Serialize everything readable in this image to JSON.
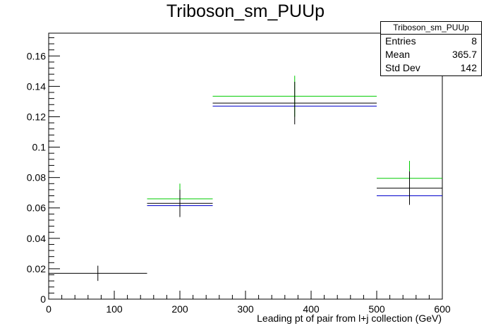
{
  "chart_data": {
    "type": "histogram",
    "title": "Triboson_sm_PUUp",
    "xlabel": "Leading pt of pair from l+j collection (GeV)",
    "ylabel": "",
    "xlim": [
      0,
      600
    ],
    "ylim": [
      0,
      0.175
    ],
    "x_ticks": [
      "0",
      "100",
      "200",
      "300",
      "400",
      "500",
      "600"
    ],
    "y_ticks": [
      "0",
      "0.02",
      "0.04",
      "0.06",
      "0.08",
      "0.1",
      "0.12",
      "0.14",
      "0.16"
    ],
    "grid": false,
    "series": [
      {
        "color": "#000000",
        "bins": [
          {
            "xlow": 0,
            "xhigh": 150,
            "value": 0.017,
            "err": 0.005
          },
          {
            "xlow": 150,
            "xhigh": 250,
            "value": 0.063,
            "err": 0.009
          },
          {
            "xlow": 250,
            "xhigh": 500,
            "value": 0.129,
            "err": 0.014
          },
          {
            "xlow": 500,
            "xhigh": 600,
            "value": 0.073,
            "err": 0.011
          }
        ]
      },
      {
        "color": "#00cc00",
        "bins": [
          {
            "xlow": 150,
            "xhigh": 250,
            "value": 0.066,
            "err": 0.01
          },
          {
            "xlow": 250,
            "xhigh": 500,
            "value": 0.1335,
            "err": 0.0135
          },
          {
            "xlow": 500,
            "xhigh": 600,
            "value": 0.0795,
            "err": 0.0115
          }
        ]
      },
      {
        "color": "#0000cc",
        "bins": [
          {
            "xlow": 150,
            "xhigh": 250,
            "value": 0.0615,
            "err": 0
          },
          {
            "xlow": 250,
            "xhigh": 500,
            "value": 0.127,
            "err": 0
          },
          {
            "xlow": 500,
            "xhigh": 600,
            "value": 0.068,
            "err": 0
          }
        ]
      }
    ],
    "stats": {
      "name": "Triboson_sm_PUUp",
      "rows": [
        {
          "label": "Entries",
          "value": "8"
        },
        {
          "label": "Mean",
          "value": "365.7"
        },
        {
          "label": "Std Dev",
          "value": "142"
        }
      ]
    }
  }
}
